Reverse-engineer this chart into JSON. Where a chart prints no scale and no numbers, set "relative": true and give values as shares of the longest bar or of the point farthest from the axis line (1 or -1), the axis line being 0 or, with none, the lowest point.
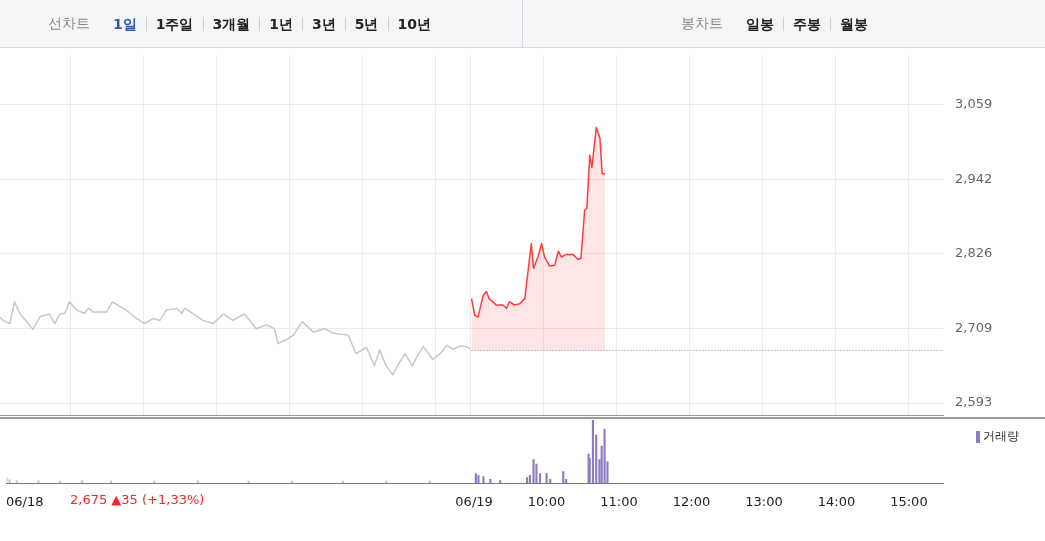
{
  "chart_data": [
    {
      "type": "other",
      "title": "선차트",
      "annotations": [
        "1일",
        "1주일",
        "3개월",
        "1년",
        "3년",
        "5년",
        "10년"
      ]
    },
    {
      "type": "other",
      "title": "봉차트",
      "annotations": [
        "일봉",
        "주봉",
        "월봉"
      ]
    },
    {
      "type": "line",
      "xlim": [
        2.55,
        15.47
      ],
      "ylim": [
        2574,
        3135
      ],
      "yticks": [
        {
          "value": 2593,
          "label": "2,593"
        },
        {
          "value": 2709,
          "label": "2,709"
        },
        {
          "value": 2826,
          "label": "2,826"
        },
        {
          "value": 2942,
          "label": "2,942"
        },
        {
          "value": 3059,
          "label": "3,059"
        }
      ],
      "xticks": [
        {
          "value": 3.51,
          "label": null
        },
        {
          "value": 4.51,
          "label": null
        },
        {
          "value": 5.51,
          "label": null
        },
        {
          "value": 6.51,
          "label": null
        },
        {
          "value": 7.51,
          "label": null
        },
        {
          "value": 8.51,
          "label": null
        },
        {
          "value": 9,
          "label": null
        },
        {
          "value": 10,
          "label": null
        },
        {
          "value": 11,
          "label": null
        },
        {
          "value": 12,
          "label": null
        },
        {
          "value": 13,
          "label": null
        },
        {
          "value": 14,
          "label": null
        },
        {
          "value": 15,
          "label": null
        }
      ],
      "tick_labels": "y",
      "grid": true,
      "marker": "none",
      "ref_lines": [
        {
          "axis": "y",
          "value": 2675,
          "color": "#888888",
          "line_style": "dotted"
        }
      ],
      "series": [
        {
          "type": "line",
          "color": "#c8c8cc",
          "x": [
            2.55,
            2.59,
            2.685,
            2.75,
            2.82,
            3.0,
            3.1,
            3.23,
            3.3,
            3.37,
            3.44,
            3.5,
            3.6,
            3.71,
            3.76,
            3.83,
            4.01,
            4.09,
            4.28,
            4.42,
            4.53,
            4.65,
            4.74,
            4.83,
            4.97,
            5.04,
            5.08,
            5.2,
            5.33,
            5.47,
            5.61,
            5.74,
            5.9,
            6.06,
            6.2,
            6.31,
            6.36,
            6.475,
            6.57,
            6.69,
            6.84,
            7.0,
            7.11,
            7.32,
            7.43,
            7.57,
            7.68,
            7.75,
            7.84,
            7.93,
            8.0,
            8.1,
            8.2,
            8.26,
            8.35,
            8.48,
            8.58,
            8.67,
            8.76,
            8.85,
            8.94,
            9.0
          ],
          "values": [
            2727,
            2722,
            2717,
            2751,
            2733,
            2708,
            2728,
            2732,
            2717,
            2732,
            2733,
            2751,
            2738,
            2733,
            2741,
            2735,
            2735,
            2751,
            2738,
            2725,
            2717,
            2725,
            2722,
            2738,
            2741,
            2733,
            2741,
            2732,
            2722,
            2717,
            2732,
            2722,
            2732,
            2709,
            2715,
            2709,
            2686,
            2692,
            2699,
            2720,
            2704,
            2709,
            2702,
            2699,
            2670,
            2680,
            2651,
            2676,
            2651,
            2637,
            2652,
            2670,
            2651,
            2665,
            2681,
            2661,
            2670,
            2683,
            2677,
            2682,
            2681,
            2677
          ]
        },
        {
          "type": "area",
          "color": "#ff3b3b",
          "x": [
            9.01,
            9.055,
            9.1,
            9.17,
            9.215,
            9.25,
            9.35,
            9.44,
            9.49,
            9.53,
            9.6,
            9.67,
            9.74,
            9.83,
            9.86,
            9.92,
            9.97,
            10.01,
            10.08,
            10.15,
            10.2,
            10.24,
            10.31,
            10.4,
            10.47,
            10.51,
            10.56,
            10.59,
            10.63,
            10.66,
            10.72,
            10.77,
            10.8,
            10.84
          ],
          "values": [
            2756,
            2730,
            2727,
            2761,
            2767,
            2756,
            2746,
            2746,
            2741,
            2751,
            2746,
            2748,
            2756,
            2842,
            2803,
            2821,
            2842,
            2821,
            2807,
            2808,
            2830,
            2821,
            2825,
            2825,
            2817,
            2819,
            2894,
            2897,
            2980,
            2961,
            3023,
            3006,
            2951,
            2951
          ]
        }
      ]
    },
    {
      "type": "bar",
      "relative": true,
      "xlim": [
        2.55,
        15.47
      ],
      "tick_labels": "x",
      "legend": "top right",
      "xticks": [
        {
          "value": 2.8,
          "label": "06/18"
        },
        {
          "value": 9,
          "label": "06/19"
        },
        {
          "value": 10,
          "label": "10:00"
        },
        {
          "value": 11,
          "label": "11:00"
        },
        {
          "value": 12,
          "label": "12:00"
        },
        {
          "value": 13,
          "label": "13:00"
        },
        {
          "value": 14,
          "label": "14:00"
        },
        {
          "value": 15,
          "label": "15:00"
        }
      ],
      "annotations": [
        "2,675 ▲35 (+1,33%)"
      ],
      "series": [
        {
          "color": "#c8c8cc",
          "x": [
            2.56,
            2.6,
            2.7,
            3.0,
            3.3,
            3.6,
            4.0,
            4.6,
            5.2,
            5.9,
            6.5,
            7.2,
            7.8,
            8.4
          ],
          "values": [
            0.08,
            0.05,
            0.04,
            0.04,
            0.03,
            0.04,
            0.03,
            0.03,
            0.04,
            0.03,
            0.03,
            0.03,
            0.03,
            0.03
          ]
        },
        {
          "name": "거래량",
          "color": "#8e7cc3",
          "x": [
            9.014,
            9.05,
            9.12,
            9.215,
            9.35,
            9.72,
            9.76,
            9.81,
            9.85,
            9.9,
            9.99,
            10.04,
            10.22,
            10.26,
            10.57,
            10.585,
            10.63,
            10.675,
            10.72,
            10.75,
            10.79,
            10.83
          ],
          "values": [
            0.15,
            0.12,
            0.1,
            0.06,
            0.04,
            0.085,
            0.12,
            0.37,
            0.3,
            0.15,
            0.15,
            0.06,
            0.18,
            0.06,
            0.46,
            0.39,
            1,
            0.76,
            0.37,
            0.585,
            0.85,
            0.34
          ]
        }
      ]
    }
  ]
}
